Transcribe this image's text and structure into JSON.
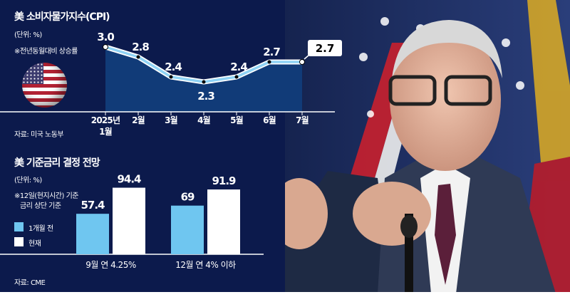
{
  "chart_data": [
    {
      "type": "line",
      "title": "美 소비자물가지수(CPI)",
      "unit": "(단위: %)",
      "note": "※전년동월대비 상승률",
      "categories": [
        "2025년 1월",
        "2월",
        "3월",
        "4월",
        "5월",
        "6월",
        "7월"
      ],
      "values": [
        3.0,
        2.8,
        2.4,
        2.3,
        2.4,
        2.7,
        2.7
      ],
      "labels": [
        "3.0",
        "2.8",
        "2.4",
        "2.3",
        "2.4",
        "2.7",
        "2.7"
      ],
      "source": "자료: 미국 노동부",
      "colors": {
        "line": "#8fd3f5",
        "area": "#113b78"
      }
    },
    {
      "type": "bar",
      "title": "美 기준금리 결정 전망",
      "unit": "(단위: %)",
      "note1": "※12일(현지시간) 기준",
      "note2": "금리 상단 기준",
      "categories": [
        "9월 연 4.25%",
        "12월 연 4% 이하"
      ],
      "series": [
        {
          "name": "1개월 전",
          "values": [
            57.4,
            69
          ],
          "labels": [
            "57.4",
            "69"
          ],
          "color": "#6fc6f0"
        },
        {
          "name": "현재",
          "values": [
            94.4,
            91.9
          ],
          "labels": [
            "94.4",
            "91.9"
          ],
          "color": "#ffffff"
        }
      ],
      "source": "자료: CME"
    }
  ],
  "icons": {
    "flag": "us-flag-globe-icon"
  }
}
